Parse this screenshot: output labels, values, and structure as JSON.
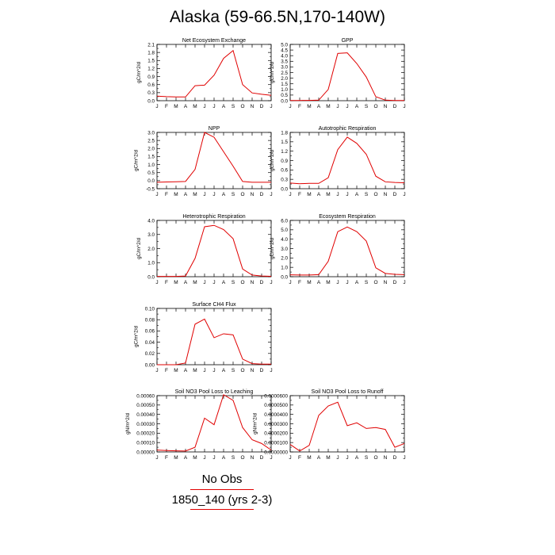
{
  "title": "Alaska (59-66.5N,170-140W)",
  "colors": {
    "series": "#e00000",
    "axis": "#000000",
    "legend_line": "#e00000"
  },
  "legend": [
    {
      "label": "No Obs"
    },
    {
      "label": "1850_140 (yrs 2-3)"
    }
  ],
  "chart_data": [
    {
      "type": "line",
      "title": "Net Ecosystem Exchange",
      "ylabel": "gC/m^2/d",
      "x": [
        "J",
        "F",
        "M",
        "A",
        "M",
        "J",
        "J",
        "A",
        "S",
        "O",
        "N",
        "D",
        "J"
      ],
      "ylim": [
        0.0,
        2.1
      ],
      "yticks": [
        "0.0",
        "0.3",
        "0.6",
        "0.9",
        "1.2",
        "1.5",
        "1.8",
        "2.1"
      ],
      "yminor": [
        0.15,
        0.45,
        0.75,
        1.05,
        1.35,
        1.65,
        1.95
      ],
      "values": [
        0.17,
        0.15,
        0.14,
        0.14,
        0.56,
        0.58,
        0.95,
        1.58,
        1.87,
        0.6,
        0.29,
        0.24,
        0.2
      ]
    },
    {
      "type": "line",
      "title": "GPP",
      "ylabel": "gC/m^2/d",
      "x": [
        "J",
        "F",
        "M",
        "A",
        "M",
        "J",
        "J",
        "A",
        "S",
        "O",
        "N",
        "D",
        "J"
      ],
      "ylim": [
        0.0,
        5.0
      ],
      "yticks": [
        "0.0",
        "0.5",
        "1.0",
        "1.5",
        "2.0",
        "2.5",
        "3.0",
        "3.5",
        "4.0",
        "4.5",
        "5.0"
      ],
      "yminor": [],
      "values": [
        0.02,
        0.02,
        0.03,
        0.05,
        1.0,
        4.2,
        4.25,
        3.3,
        2.1,
        0.35,
        0.05,
        0.02,
        0.02
      ]
    },
    {
      "type": "line",
      "title": "NPP",
      "ylabel": "gC/m^2/d",
      "x": [
        "J",
        "F",
        "M",
        "A",
        "M",
        "J",
        "J",
        "A",
        "S",
        "O",
        "N",
        "D",
        "J"
      ],
      "ylim": [
        -0.5,
        3.0
      ],
      "yticks": [
        "-0.5",
        "0.0",
        "0.5",
        "1.0",
        "1.5",
        "2.0",
        "2.5",
        "3.0"
      ],
      "yminor": [
        -0.25,
        0.25,
        0.75,
        1.25,
        1.75,
        2.25,
        2.75
      ],
      "values": [
        -0.1,
        -0.08,
        -0.07,
        -0.05,
        0.7,
        3.0,
        2.7,
        1.8,
        0.9,
        -0.05,
        -0.1,
        -0.1,
        -0.1
      ]
    },
    {
      "type": "line",
      "title": "Autotrophic Respiration",
      "ylabel": "gC/m^2/d",
      "x": [
        "J",
        "F",
        "M",
        "A",
        "M",
        "J",
        "J",
        "A",
        "S",
        "O",
        "N",
        "D",
        "J"
      ],
      "ylim": [
        0.0,
        1.8
      ],
      "yticks": [
        "0.0",
        "0.3",
        "0.6",
        "0.9",
        "1.2",
        "1.5",
        "1.8"
      ],
      "yminor": [
        0.15,
        0.45,
        0.75,
        1.05,
        1.35,
        1.65
      ],
      "values": [
        0.18,
        0.16,
        0.17,
        0.17,
        0.35,
        1.25,
        1.65,
        1.45,
        1.1,
        0.4,
        0.22,
        0.2,
        0.19
      ]
    },
    {
      "type": "line",
      "title": "Heterotrophic Respiration",
      "ylabel": "gC/m^2/d",
      "x": [
        "J",
        "F",
        "M",
        "A",
        "M",
        "J",
        "J",
        "A",
        "S",
        "O",
        "N",
        "D",
        "J"
      ],
      "ylim": [
        0.0,
        4.0
      ],
      "yticks": [
        "0.0",
        "1.0",
        "2.0",
        "3.0",
        "4.0"
      ],
      "yminor": [
        0.5,
        1.5,
        2.5,
        3.5
      ],
      "values": [
        0.02,
        0.02,
        0.02,
        0.05,
        1.3,
        3.55,
        3.65,
        3.35,
        2.7,
        0.55,
        0.12,
        0.05,
        0.03
      ]
    },
    {
      "type": "line",
      "title": "Ecosystem Respiration",
      "ylabel": "gC/m^2/d",
      "x": [
        "J",
        "F",
        "M",
        "A",
        "M",
        "J",
        "J",
        "A",
        "S",
        "O",
        "N",
        "D",
        "J"
      ],
      "ylim": [
        0.0,
        6.0
      ],
      "yticks": [
        "0.0",
        "1.0",
        "2.0",
        "3.0",
        "4.0",
        "5.0",
        "6.0"
      ],
      "yminor": [
        0.5,
        1.5,
        2.5,
        3.5,
        4.5,
        5.5
      ],
      "values": [
        0.2,
        0.18,
        0.18,
        0.22,
        1.65,
        4.8,
        5.3,
        4.8,
        3.8,
        0.95,
        0.35,
        0.25,
        0.22
      ]
    },
    {
      "type": "line",
      "title": "Surface CH4 Flux",
      "ylabel": "gC/m^2/d",
      "x": [
        "J",
        "F",
        "M",
        "A",
        "M",
        "J",
        "J",
        "A",
        "S",
        "O",
        "N",
        "D",
        "J"
      ],
      "ylim": [
        0.0,
        0.1
      ],
      "yticks": [
        "0.00",
        "0.02",
        "0.04",
        "0.06",
        "0.08",
        "0.10"
      ],
      "yminor": [
        0.01,
        0.03,
        0.05,
        0.07,
        0.09
      ],
      "values": [
        0.0,
        0.0,
        0.0,
        0.003,
        0.072,
        0.081,
        0.048,
        0.055,
        0.053,
        0.01,
        0.002,
        0.001,
        0.001
      ]
    },
    {
      "type": "line",
      "title": "Soil NO3 Pool Loss to Leaching",
      "ylabel": "gN/m^2/d",
      "x": [
        "J",
        "F",
        "M",
        "A",
        "M",
        "J",
        "J",
        "A",
        "S",
        "O",
        "N",
        "D",
        "J"
      ],
      "ylim": [
        0.0,
        0.0006
      ],
      "yticks": [
        "0.00000",
        "0.00010",
        "0.00020",
        "0.00030",
        "0.00040",
        "0.00050",
        "0.00060"
      ],
      "yminor": [
        5e-05,
        0.00015,
        0.00025,
        0.00035,
        0.00045,
        0.00055
      ],
      "values": [
        2e-05,
        1.5e-05,
        1.2e-05,
        1e-05,
        5e-05,
        0.00036,
        0.00029,
        0.00061,
        0.00055,
        0.00026,
        0.00013,
        9e-05,
        2e-05
      ]
    },
    {
      "type": "line",
      "title": "Soil NO3 Pool Loss to Runoff",
      "ylabel": "gN/m^2/d",
      "x": [
        "J",
        "F",
        "M",
        "A",
        "M",
        "J",
        "J",
        "A",
        "S",
        "O",
        "N",
        "D",
        "J"
      ],
      "ylim": [
        0.0,
        6e-05
      ],
      "yticks": [
        "0.0000000",
        "0.0000100",
        "0.0000200",
        "0.0000300",
        "0.0000400",
        "0.0000500",
        "0.0000600"
      ],
      "yminor": [
        5e-06,
        1.5e-05,
        2.5e-05,
        3.5e-05,
        4.5e-05,
        5.5e-05
      ],
      "values": [
        8e-06,
        1e-06,
        7e-06,
        3.9e-05,
        4.9e-05,
        5.3e-05,
        2.8e-05,
        3.1e-05,
        2.5e-05,
        2.6e-05,
        2.4e-05,
        5e-06,
        9e-06
      ]
    }
  ]
}
